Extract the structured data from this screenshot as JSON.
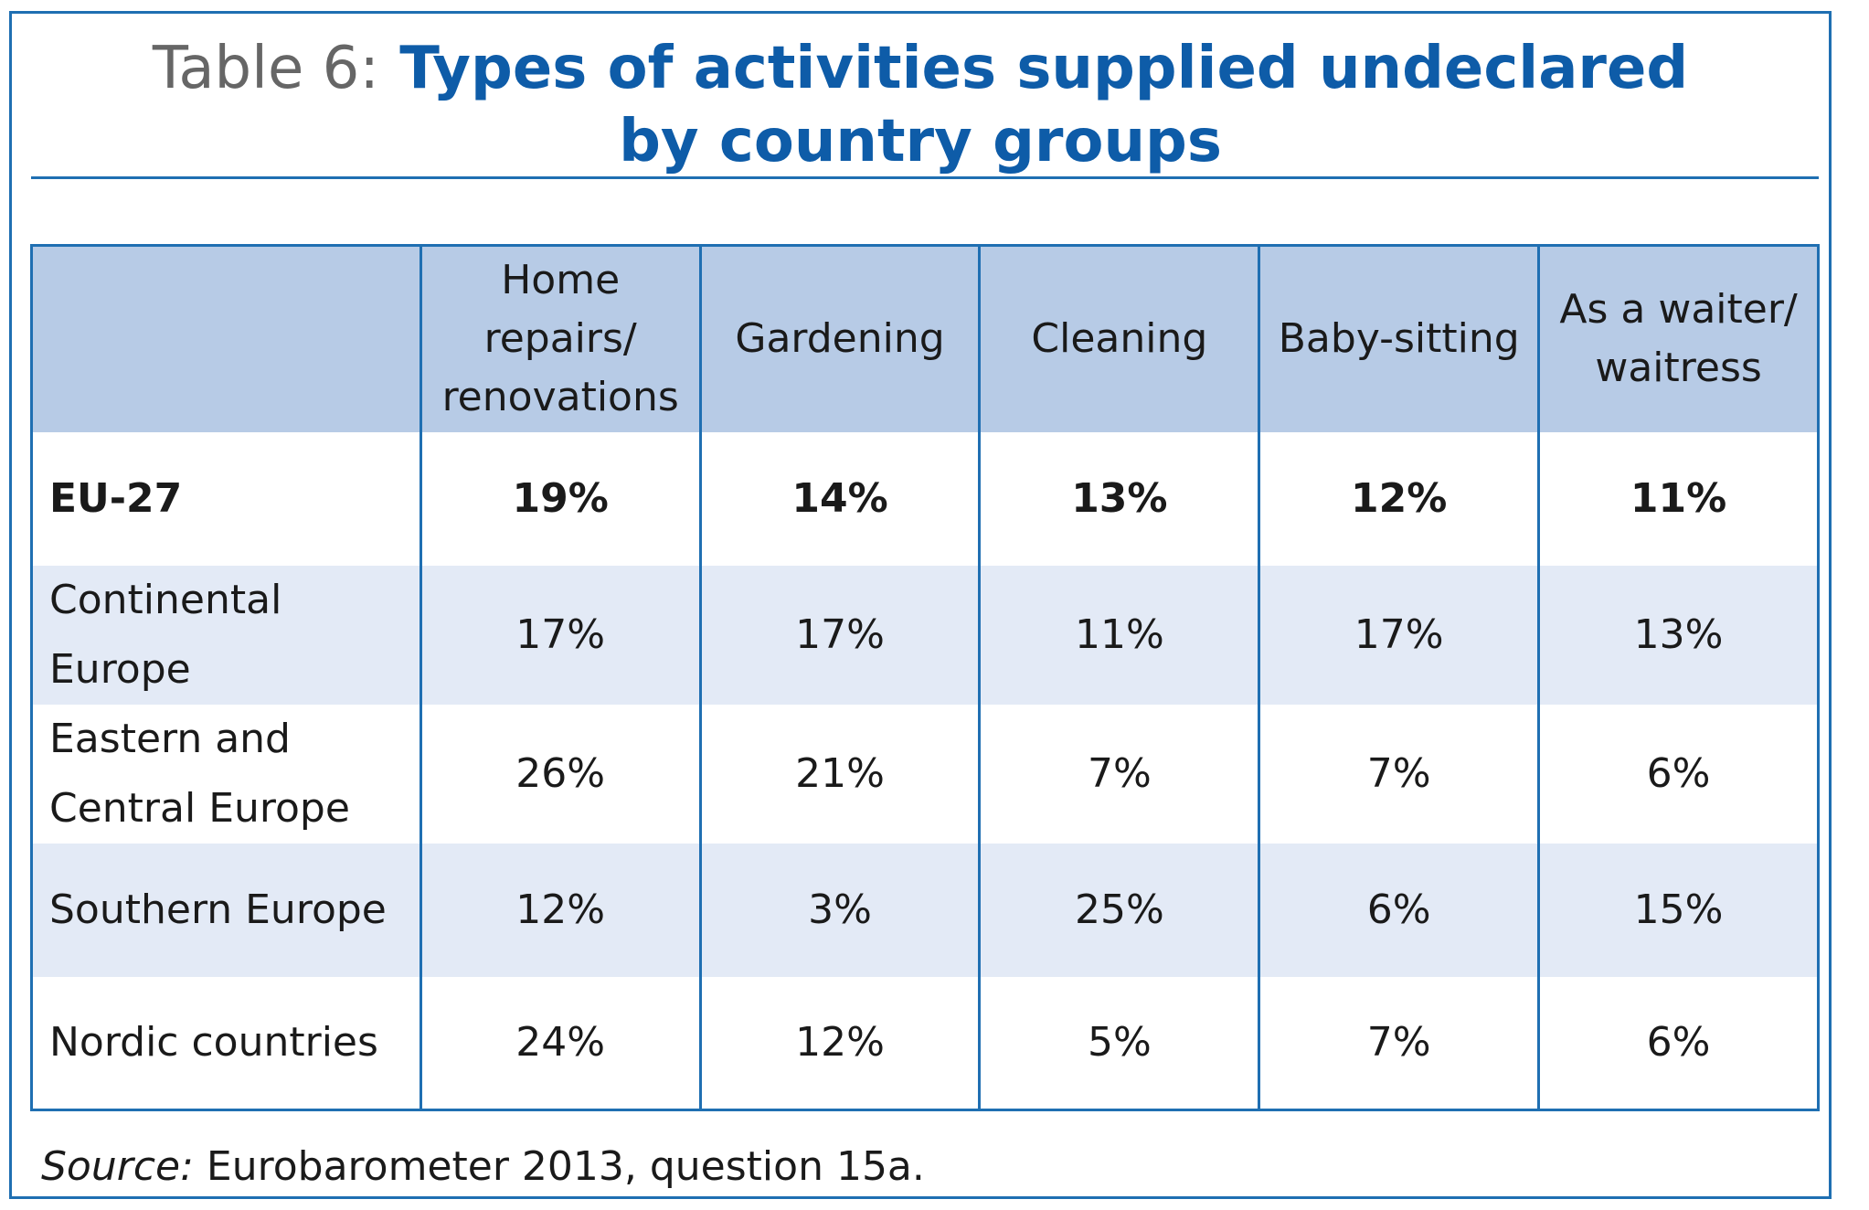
{
  "title": {
    "prefix": "Table 6:",
    "line1": "Types of activities supplied undeclared",
    "line2": "by country groups"
  },
  "table": {
    "columns": [
      "",
      "Home repairs/ renovations",
      "Gardening",
      "Cleaning",
      "Baby-sitting",
      "As a waiter/ waitress"
    ],
    "rows": [
      {
        "label": "EU-27",
        "values": [
          "19%",
          "14%",
          "13%",
          "12%",
          "11%"
        ]
      },
      {
        "label": "Continental Europe",
        "values": [
          "17%",
          "17%",
          "11%",
          "17%",
          "13%"
        ]
      },
      {
        "label": "Eastern and Central Europe",
        "values": [
          "26%",
          "21%",
          "7%",
          "7%",
          "6%"
        ]
      },
      {
        "label": "Southern Europe",
        "values": [
          "12%",
          "3%",
          "25%",
          "6%",
          "15%"
        ]
      },
      {
        "label": "Nordic countries",
        "values": [
          "24%",
          "12%",
          "5%",
          "7%",
          "6%"
        ]
      }
    ]
  },
  "source": {
    "label": "Source:",
    "text": "Eurobarometer 2013, question 15a."
  },
  "colors": {
    "accent": "#1f6fb2",
    "title": "#0e5ca8",
    "header_bg": "#b7cbe6",
    "alt_row_bg": "#e3eaf6"
  }
}
